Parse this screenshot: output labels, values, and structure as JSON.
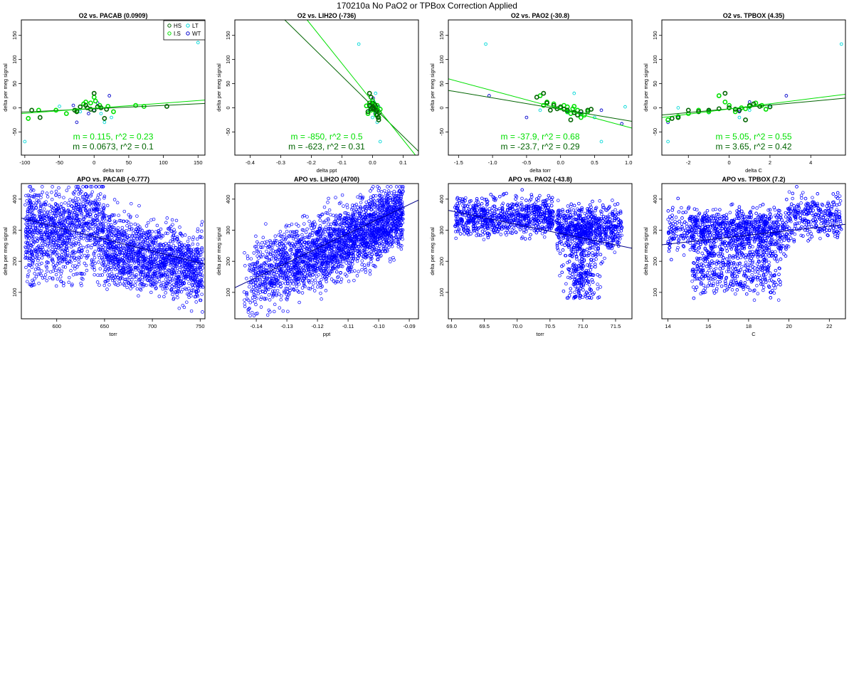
{
  "figure_title": "170210a   No PaO2 or TPBox Correction Applied",
  "ylabel": "delta per meg signal",
  "legend": {
    "entries": [
      "HS",
      "I.S",
      "LT",
      "WT"
    ]
  },
  "colors": {
    "HS": "#006400",
    "I.S": "#00e000",
    "LT": "#00d8d8",
    "WT": "#0000cc",
    "apo_points": "#0000ff",
    "apo_line": "#00008b",
    "fit_dark": "#006400",
    "fit_light": "#00e000"
  },
  "chart_data": [
    {
      "type": "scatter",
      "title": "O2 vs. PACAB (0.0909)",
      "xlabel": "delta torr",
      "xlim": [
        -105,
        160
      ],
      "ylim": [
        -98,
        182
      ],
      "xticks": [
        -100,
        -50,
        0,
        50,
        100,
        150
      ],
      "yticks": [
        -50,
        0,
        50,
        100,
        150
      ],
      "legend": true,
      "annotations": [
        "m = 0.115, r^2 = 0.23",
        "m = 0.0673, r^2 = 0.1"
      ],
      "fit_lines": [
        {
          "color": "fit_dark",
          "slope": 0.0673,
          "x": [
            -105,
            160
          ],
          "y": [
            -9,
            9
          ]
        },
        {
          "color": "fit_light",
          "slope": 0.115,
          "x": [
            -105,
            160
          ],
          "y": [
            -12,
            16
          ]
        }
      ],
      "points": {
        "HS": [
          [
            -90,
            -5
          ],
          [
            -78,
            -20
          ],
          [
            -28,
            -5
          ],
          [
            -25,
            -8
          ],
          [
            -20,
            2
          ],
          [
            -12,
            5
          ],
          [
            -10,
            0
          ],
          [
            -5,
            -3
          ],
          [
            0,
            30
          ],
          [
            0,
            -5
          ],
          [
            5,
            2
          ],
          [
            10,
            0
          ],
          [
            15,
            -22
          ],
          [
            18,
            -3
          ],
          [
            105,
            3
          ]
        ],
        "I.S": [
          [
            -95,
            -22
          ],
          [
            -80,
            -5
          ],
          [
            -55,
            -5
          ],
          [
            -40,
            -12
          ],
          [
            -25,
            -6
          ],
          [
            -15,
            8
          ],
          [
            -12,
            12
          ],
          [
            -5,
            10
          ],
          [
            0,
            22
          ],
          [
            2,
            14
          ],
          [
            8,
            5
          ],
          [
            20,
            3
          ],
          [
            28,
            -8
          ],
          [
            60,
            5
          ],
          [
            72,
            3
          ]
        ],
        "LT": [
          [
            -100,
            -70
          ],
          [
            -50,
            3
          ],
          [
            -20,
            -8
          ],
          [
            10,
            -12
          ],
          [
            15,
            -30
          ],
          [
            25,
            -20
          ],
          [
            150,
            135
          ]
        ],
        "WT": [
          [
            -30,
            5
          ],
          [
            -25,
            -30
          ],
          [
            -8,
            -12
          ],
          [
            0,
            -5
          ],
          [
            5,
            10
          ],
          [
            22,
            25
          ]
        ]
      }
    },
    {
      "type": "scatter",
      "title": "O2 vs. LIH2O (-736)",
      "xlabel": "delta ppt",
      "xlim": [
        -0.45,
        0.15
      ],
      "ylim": [
        -98,
        182
      ],
      "xticks": [
        -0.4,
        -0.3,
        -0.2,
        -0.1,
        0.0,
        0.1
      ],
      "yticks": [
        -50,
        0,
        50,
        100,
        150
      ],
      "annotations": [
        "m = -850, r^2 = 0.5",
        "m = -623, r^2 = 0.31"
      ],
      "fit_lines": [
        {
          "color": "fit_dark",
          "slope": -623,
          "x": [
            -0.287,
            0.15
          ],
          "y": [
            182,
            -90
          ]
        },
        {
          "color": "fit_light",
          "slope": -850,
          "x": [
            -0.214,
            0.14
          ],
          "y": [
            182,
            -98
          ]
        }
      ],
      "points": {
        "HS": [
          [
            -0.01,
            30
          ],
          [
            -0.005,
            22
          ],
          [
            -0.01,
            5
          ],
          [
            0,
            0
          ],
          [
            0.005,
            -3
          ],
          [
            0.01,
            2
          ],
          [
            0.015,
            -15
          ],
          [
            0.02,
            -25
          ],
          [
            -0.015,
            -8
          ],
          [
            0.0,
            10
          ],
          [
            0.012,
            -5
          ],
          [
            0.018,
            -20
          ],
          [
            -0.005,
            -2
          ],
          [
            0.008,
            6
          ],
          [
            0.022,
            -10
          ]
        ],
        "I.S": [
          [
            -0.02,
            4
          ],
          [
            -0.015,
            -12
          ],
          [
            -0.01,
            10
          ],
          [
            -0.005,
            -5
          ],
          [
            0,
            15
          ],
          [
            0.005,
            0
          ],
          [
            0.01,
            -8
          ],
          [
            0.015,
            5
          ],
          [
            0.02,
            -20
          ],
          [
            0.025,
            -3
          ],
          [
            0.005,
            8
          ],
          [
            -0.008,
            2
          ],
          [
            0.012,
            -15
          ],
          [
            0.018,
            -6
          ],
          [
            0.0,
            -2
          ]
        ],
        "LT": [
          [
            -0.045,
            132
          ],
          [
            0.01,
            30
          ],
          [
            0.025,
            -70
          ],
          [
            0.0,
            -20
          ],
          [
            -0.01,
            -5
          ],
          [
            0.015,
            -30
          ],
          [
            0.005,
            12
          ]
        ],
        "WT": [
          [
            -0.005,
            0
          ],
          [
            0.002,
            20
          ],
          [
            0.008,
            -12
          ],
          [
            0.015,
            -8
          ],
          [
            -0.01,
            5
          ],
          [
            0.02,
            2
          ]
        ]
      }
    },
    {
      "type": "scatter",
      "title": "O2 vs. PAO2 (-30.8)",
      "xlabel": "delta torr",
      "xlim": [
        -1.65,
        1.05
      ],
      "ylim": [
        -98,
        182
      ],
      "xticks": [
        -1.5,
        -1.0,
        -0.5,
        0.0,
        0.5,
        1.0
      ],
      "yticks": [
        -50,
        0,
        50,
        100,
        150
      ],
      "annotations": [
        "m = -37.9, r^2 = 0.68",
        "m = -23.7, r^2 = 0.29"
      ],
      "fit_lines": [
        {
          "color": "fit_dark",
          "slope": -23.7,
          "x": [
            -1.65,
            1.05
          ],
          "y": [
            36,
            -28
          ]
        },
        {
          "color": "fit_light",
          "slope": -37.9,
          "x": [
            -1.65,
            1.05
          ],
          "y": [
            60,
            -42
          ]
        }
      ],
      "points": {
        "HS": [
          [
            -0.25,
            30
          ],
          [
            -0.35,
            22
          ],
          [
            -0.2,
            10
          ],
          [
            -0.1,
            5
          ],
          [
            0,
            2
          ],
          [
            0.05,
            -3
          ],
          [
            0.1,
            -5
          ],
          [
            0.15,
            -25
          ],
          [
            0.2,
            -10
          ],
          [
            0.3,
            -8
          ],
          [
            0.4,
            -5
          ],
          [
            -0.05,
            -2
          ],
          [
            0.25,
            -15
          ],
          [
            -0.15,
            -5
          ],
          [
            0.45,
            -3
          ]
        ],
        "I.S": [
          [
            -0.3,
            25
          ],
          [
            -0.2,
            12
          ],
          [
            -0.1,
            8
          ],
          [
            0,
            0
          ],
          [
            0.05,
            5
          ],
          [
            0.1,
            -8
          ],
          [
            0.15,
            -12
          ],
          [
            0.2,
            3
          ],
          [
            0.25,
            -5
          ],
          [
            0.3,
            -20
          ],
          [
            0.35,
            -15
          ],
          [
            0.4,
            -8
          ],
          [
            -0.25,
            5
          ],
          [
            0.18,
            -2
          ],
          [
            0.1,
            2
          ]
        ],
        "LT": [
          [
            -1.1,
            132
          ],
          [
            0.2,
            30
          ],
          [
            0.6,
            -70
          ],
          [
            0.95,
            2
          ],
          [
            -0.3,
            -5
          ],
          [
            0.5,
            -20
          ],
          [
            0.1,
            -10
          ]
        ],
        "WT": [
          [
            -1.05,
            25
          ],
          [
            -0.5,
            -20
          ],
          [
            0.1,
            -8
          ],
          [
            0.6,
            -5
          ],
          [
            0.9,
            -33
          ],
          [
            0.3,
            -12
          ]
        ]
      }
    },
    {
      "type": "scatter",
      "title": "O2 vs. TPBOX (4.35)",
      "xlabel": "delta C",
      "xlim": [
        -3.3,
        5.7
      ],
      "ylim": [
        -98,
        182
      ],
      "xticks": [
        -2,
        0,
        2,
        4
      ],
      "yticks": [
        -50,
        0,
        50,
        100,
        150
      ],
      "annotations": [
        "m = 5.05, r^2 = 0.55",
        "m = 3.65, r^2 = 0.42"
      ],
      "fit_lines": [
        {
          "color": "fit_dark",
          "slope": 3.65,
          "x": [
            -3.3,
            5.7
          ],
          "y": [
            -15,
            20
          ]
        },
        {
          "color": "fit_light",
          "slope": 5.05,
          "x": [
            -3.3,
            5.7
          ],
          "y": [
            -20,
            28
          ]
        }
      ],
      "points": {
        "HS": [
          [
            -2.8,
            -22
          ],
          [
            -2,
            -5
          ],
          [
            -1.5,
            -8
          ],
          [
            -1,
            -5
          ],
          [
            -0.5,
            -2
          ],
          [
            -0.2,
            30
          ],
          [
            0,
            0
          ],
          [
            0.5,
            -5
          ],
          [
            0.8,
            -25
          ],
          [
            1,
            5
          ],
          [
            1.2,
            8
          ],
          [
            1.5,
            3
          ],
          [
            2,
            2
          ],
          [
            -2.5,
            -20
          ],
          [
            0.3,
            -3
          ]
        ],
        "I.S": [
          [
            -3,
            -25
          ],
          [
            -2.5,
            -18
          ],
          [
            -2,
            -12
          ],
          [
            -1.5,
            -5
          ],
          [
            -1,
            -8
          ],
          [
            -0.5,
            25
          ],
          [
            0,
            5
          ],
          [
            0.3,
            -8
          ],
          [
            0.6,
            0
          ],
          [
            1,
            3
          ],
          [
            1.3,
            10
          ],
          [
            1.6,
            5
          ],
          [
            1.8,
            -3
          ],
          [
            -0.2,
            12
          ],
          [
            0.8,
            -2
          ]
        ],
        "LT": [
          [
            -3,
            -70
          ],
          [
            -2.5,
            0
          ],
          [
            -1,
            -10
          ],
          [
            0.5,
            -20
          ],
          [
            1,
            -5
          ],
          [
            2,
            5
          ],
          [
            5.5,
            132
          ]
        ],
        "WT": [
          [
            -3,
            -30
          ],
          [
            -2.5,
            -20
          ],
          [
            -1,
            -5
          ],
          [
            0.5,
            -8
          ],
          [
            1,
            12
          ],
          [
            2.8,
            25
          ]
        ]
      }
    },
    {
      "type": "scatter",
      "title": "APO vs. PACAB (-0.777)",
      "xlabel": "torr",
      "xlim": [
        563,
        755
      ],
      "ylim": [
        15,
        450
      ],
      "xticks": [
        600,
        650,
        700,
        750
      ],
      "yticks": [
        100,
        200,
        300,
        400
      ],
      "fit_lines": [
        {
          "color": "apo_line",
          "slope": -0.777,
          "x": [
            563,
            755
          ],
          "y": [
            339,
            190
          ]
        }
      ]
    },
    {
      "type": "scatter",
      "title": "APO vs. LIH2O (4700)",
      "xlabel": "ppt",
      "xlim": [
        -0.147,
        -0.087
      ],
      "ylim": [
        15,
        450
      ],
      "xticks": [
        -0.14,
        -0.13,
        -0.12,
        -0.11,
        -0.1,
        -0.09
      ],
      "yticks": [
        100,
        200,
        300,
        400
      ],
      "fit_lines": [
        {
          "color": "apo_line",
          "slope": 4700,
          "x": [
            -0.147,
            -0.087
          ],
          "y": [
            115,
            397
          ]
        }
      ]
    },
    {
      "type": "scatter",
      "title": "APO vs. PAO2 (-43.8)",
      "xlabel": "torr",
      "xlim": [
        68.95,
        71.75
      ],
      "ylim": [
        15,
        450
      ],
      "xticks": [
        69.0,
        69.5,
        70.0,
        70.5,
        71.0,
        71.5
      ],
      "yticks": [
        100,
        200,
        300,
        400
      ],
      "fit_lines": [
        {
          "color": "apo_line",
          "slope": -43.8,
          "x": [
            68.95,
            71.75
          ],
          "y": [
            364,
            242
          ]
        }
      ]
    },
    {
      "type": "scatter",
      "title": "APO vs. TPBOX (7.2)",
      "xlabel": "C",
      "xlim": [
        13.7,
        22.8
      ],
      "ylim": [
        15,
        450
      ],
      "xticks": [
        14,
        16,
        18,
        20,
        22
      ],
      "yticks": [
        100,
        200,
        300,
        400
      ],
      "fit_lines": [
        {
          "color": "apo_line",
          "slope": 7.2,
          "x": [
            13.7,
            22.8
          ],
          "y": [
            253,
            319
          ]
        }
      ]
    }
  ]
}
